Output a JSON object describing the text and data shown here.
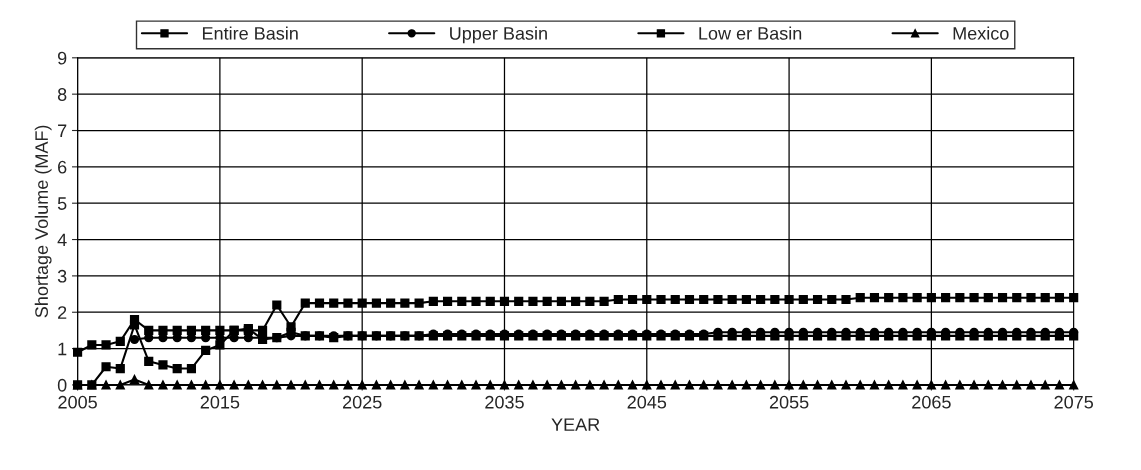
{
  "chart_data": {
    "type": "line",
    "xlabel": "YEAR",
    "ylabel": "Shortage Volume (MAF)",
    "x": [
      2005,
      2006,
      2007,
      2008,
      2009,
      2010,
      2011,
      2012,
      2013,
      2014,
      2015,
      2016,
      2017,
      2018,
      2019,
      2020,
      2021,
      2022,
      2023,
      2024,
      2025,
      2026,
      2027,
      2028,
      2029,
      2030,
      2031,
      2032,
      2033,
      2034,
      2035,
      2036,
      2037,
      2038,
      2039,
      2040,
      2041,
      2042,
      2043,
      2044,
      2045,
      2046,
      2047,
      2048,
      2049,
      2050,
      2051,
      2052,
      2053,
      2054,
      2055,
      2056,
      2057,
      2058,
      2059,
      2060,
      2061,
      2062,
      2063,
      2064,
      2065,
      2066,
      2067,
      2068,
      2069,
      2070,
      2071,
      2072,
      2073,
      2074,
      2075
    ],
    "series": [
      {
        "name": "Entire Basin",
        "color": "#000000",
        "marker": "square",
        "values": [
          0.9,
          1.1,
          1.1,
          1.2,
          1.8,
          1.5,
          1.5,
          1.5,
          1.5,
          1.5,
          1.5,
          1.5,
          1.5,
          1.5,
          2.2,
          1.6,
          2.25,
          2.25,
          2.25,
          2.25,
          2.25,
          2.25,
          2.25,
          2.25,
          2.25,
          2.3,
          2.3,
          2.3,
          2.3,
          2.3,
          2.3,
          2.3,
          2.3,
          2.3,
          2.3,
          2.3,
          2.3,
          2.3,
          2.35,
          2.35,
          2.35,
          2.35,
          2.35,
          2.35,
          2.35,
          2.35,
          2.35,
          2.35,
          2.35,
          2.35,
          2.35,
          2.35,
          2.35,
          2.35,
          2.35,
          2.4,
          2.4,
          2.4,
          2.4,
          2.4,
          2.4,
          2.4,
          2.4,
          2.4,
          2.4,
          2.4,
          2.4,
          2.4,
          2.4,
          2.4,
          2.4
        ]
      },
      {
        "name": "Upper Basin",
        "color": "#000000",
        "marker": "circle",
        "values": [
          null,
          null,
          null,
          null,
          1.25,
          1.3,
          1.3,
          1.3,
          1.3,
          1.3,
          1.3,
          1.3,
          1.3,
          1.3,
          1.3,
          1.35,
          1.35,
          1.35,
          1.35,
          1.35,
          1.35,
          1.35,
          1.35,
          1.35,
          1.35,
          1.4,
          1.4,
          1.4,
          1.4,
          1.4,
          1.4,
          1.4,
          1.4,
          1.4,
          1.4,
          1.4,
          1.4,
          1.4,
          1.4,
          1.4,
          1.4,
          1.4,
          1.4,
          1.4,
          1.4,
          1.45,
          1.45,
          1.45,
          1.45,
          1.45,
          1.45,
          1.45,
          1.45,
          1.45,
          1.45,
          1.45,
          1.45,
          1.45,
          1.45,
          1.45,
          1.45,
          1.45,
          1.45,
          1.45,
          1.45,
          1.45,
          1.45,
          1.45,
          1.45,
          1.45,
          1.45
        ]
      },
      {
        "name": "Low er Basin",
        "color": "#000000",
        "marker": "square",
        "values": [
          0,
          0,
          0.5,
          0.45,
          1.65,
          0.65,
          0.55,
          0.45,
          0.45,
          0.95,
          1.1,
          1.5,
          1.55,
          1.25,
          1.3,
          1.45,
          1.35,
          1.35,
          1.3,
          1.35,
          1.35,
          1.35,
          1.35,
          1.35,
          1.35,
          1.35,
          1.35,
          1.35,
          1.35,
          1.35,
          1.35,
          1.35,
          1.35,
          1.35,
          1.35,
          1.35,
          1.35,
          1.35,
          1.35,
          1.35,
          1.35,
          1.35,
          1.35,
          1.35,
          1.35,
          1.35,
          1.35,
          1.35,
          1.35,
          1.35,
          1.35,
          1.35,
          1.35,
          1.35,
          1.35,
          1.35,
          1.35,
          1.35,
          1.35,
          1.35,
          1.35,
          1.35,
          1.35,
          1.35,
          1.35,
          1.35,
          1.35,
          1.35,
          1.35,
          1.35,
          1.35
        ]
      },
      {
        "name": "Mexico",
        "color": "#000000",
        "marker": "triangle",
        "values": [
          0,
          0,
          0,
          0,
          0.15,
          0,
          0,
          0,
          0,
          0,
          0,
          0,
          0,
          0,
          0,
          0,
          0,
          0,
          0,
          0,
          0,
          0,
          0,
          0,
          0,
          0,
          0,
          0,
          0,
          0,
          0,
          0,
          0,
          0,
          0,
          0,
          0,
          0,
          0,
          0,
          0,
          0,
          0,
          0,
          0,
          0,
          0,
          0,
          0,
          0,
          0,
          0,
          0,
          0,
          0,
          0,
          0,
          0,
          0,
          0,
          0,
          0,
          0,
          0,
          0,
          0,
          0,
          0,
          0,
          0,
          0
        ]
      }
    ],
    "xlim": [
      2005,
      2075
    ],
    "xticks": [
      2005,
      2015,
      2025,
      2035,
      2045,
      2055,
      2065,
      2075
    ],
    "ylim": [
      0,
      9
    ],
    "yticks": [
      0,
      1,
      2,
      3,
      4,
      5,
      6,
      7,
      8,
      9
    ],
    "grid": true,
    "legend": "top",
    "line_style": "solid"
  }
}
